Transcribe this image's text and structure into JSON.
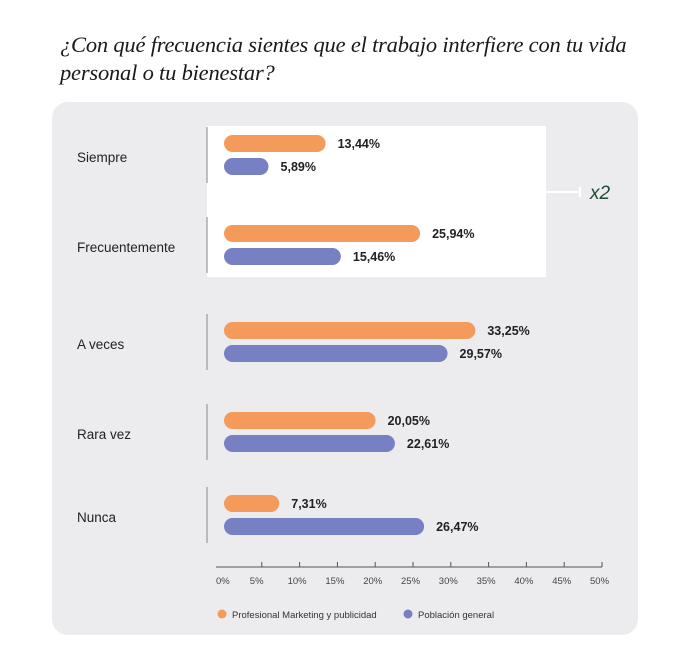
{
  "chart_data": {
    "type": "bar",
    "orientation": "horizontal",
    "title": "¿Con qué frecuencia sientes que el trabajo interfiere con tu vida personal o tu bienestar?",
    "categories": [
      "Siempre",
      "Frecuentemente",
      "A veces",
      "Rara vez",
      "Nunca"
    ],
    "series": [
      {
        "name": "Profesional Marketing y publicidad",
        "color": "#f49a5a",
        "values": [
          13.44,
          25.94,
          33.25,
          20.05,
          7.31
        ],
        "labels": [
          "13,44%",
          "25,94%",
          "33,25%",
          "20,05%",
          "7,31%"
        ]
      },
      {
        "name": "Población general",
        "color": "#7680c2",
        "values": [
          5.89,
          15.46,
          29.57,
          22.61,
          26.47
        ],
        "labels": [
          "5,89%",
          "15,46%",
          "29,57%",
          "22,61%",
          "26,47%"
        ]
      }
    ],
    "xlim": [
      0,
      50
    ],
    "xticks": [
      "0%",
      "5%",
      "10%",
      "15%",
      "20%",
      "25%",
      "30%",
      "35%",
      "40%",
      "45%",
      "50%"
    ],
    "grid": false,
    "legend_position": "bottom",
    "annotation": {
      "text": "x2",
      "color": "#1f4a36",
      "applies_to": [
        "Siempre",
        "Frecuentemente"
      ]
    }
  }
}
